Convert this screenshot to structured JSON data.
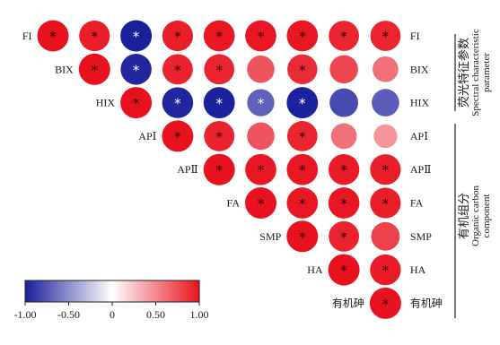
{
  "chart_data": {
    "type": "correlation-matrix",
    "variables": [
      "FI",
      "BIX",
      "HIX",
      "APⅠ",
      "APⅡ",
      "FA",
      "SMP",
      "HA",
      "有机砷"
    ],
    "cell_values": [
      [
        1.0,
        0.95,
        -1.0,
        0.95,
        0.98,
        0.98,
        0.98,
        0.92,
        0.92
      ],
      [
        0.95,
        1.0,
        -0.97,
        0.93,
        0.92,
        0.72,
        0.9,
        0.78,
        0.6
      ],
      [
        -1.0,
        -0.97,
        1.0,
        -0.97,
        -0.99,
        -0.7,
        -0.99,
        -0.8,
        -0.72
      ],
      [
        0.95,
        0.93,
        -0.97,
        1.0,
        0.93,
        0.72,
        0.92,
        0.6,
        0.45
      ],
      [
        0.98,
        0.92,
        -0.99,
        0.93,
        1.0,
        0.98,
        0.98,
        0.96,
        0.95
      ],
      [
        0.98,
        0.72,
        -0.7,
        0.72,
        0.98,
        1.0,
        0.98,
        0.98,
        0.95
      ],
      [
        0.98,
        0.9,
        -0.99,
        0.92,
        0.98,
        0.98,
        1.0,
        0.93,
        0.8
      ],
      [
        0.92,
        0.78,
        -0.8,
        0.6,
        0.96,
        0.98,
        0.93,
        1.0,
        0.96
      ],
      [
        0.92,
        0.6,
        -0.72,
        0.45,
        0.95,
        0.95,
        0.8,
        0.96,
        1.0
      ]
    ],
    "significant": [
      [
        true,
        true,
        true,
        true,
        true,
        true,
        true,
        true,
        true
      ],
      [
        true,
        true,
        true,
        true,
        true,
        false,
        true,
        false,
        false
      ],
      [
        true,
        true,
        true,
        true,
        true,
        true,
        true,
        false,
        false
      ],
      [
        true,
        true,
        true,
        true,
        true,
        false,
        true,
        false,
        false
      ],
      [
        true,
        true,
        true,
        true,
        true,
        true,
        true,
        true,
        true
      ],
      [
        true,
        false,
        true,
        false,
        true,
        true,
        true,
        true,
        true
      ],
      [
        true,
        true,
        true,
        true,
        true,
        true,
        true,
        true,
        false
      ],
      [
        true,
        false,
        false,
        false,
        true,
        true,
        true,
        true,
        true
      ],
      [
        true,
        false,
        false,
        false,
        true,
        true,
        false,
        true,
        true
      ]
    ],
    "significance_mark": "*",
    "colorbar": {
      "range": [
        -1.0,
        1.0
      ],
      "ticks": [
        "-1.00",
        "-0.50",
        "0",
        "0.50",
        "1.00"
      ],
      "negative_color": "#1a1f9c",
      "neutral_color": "#ffffff",
      "positive_color": "#e8121e"
    },
    "groups": [
      {
        "name_cn": "荧光特征参数",
        "name_en": [
          "Spectral characteristic",
          "parameter"
        ]
      },
      {
        "name_cn": "有机组分",
        "name_en": [
          "Organic carbon",
          "component"
        ]
      }
    ],
    "grid": false
  }
}
